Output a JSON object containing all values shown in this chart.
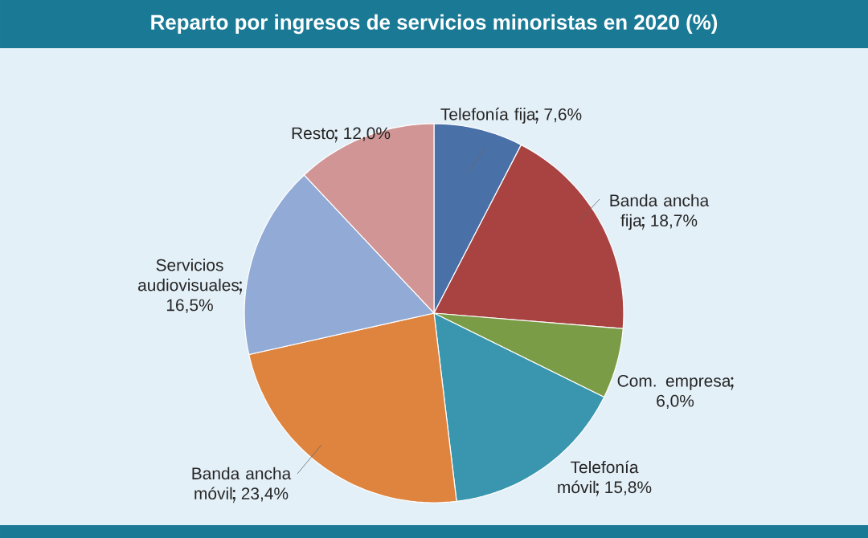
{
  "chart_data": {
    "type": "pie",
    "title": "Reparto por ingresos de servicios minoristas en 2020 (%)",
    "categories": [
      "Telefonía fija",
      "Banda ancha fija",
      "Com. empresa",
      "Telefonía móvil",
      "Banda ancha móvil",
      "Servicios audiovisuales",
      "Resto"
    ],
    "values": [
      7.6,
      18.7,
      6.0,
      15.8,
      23.4,
      16.5,
      12.0
    ],
    "value_labels": [
      "7,6%",
      "18,7%",
      "6,0%",
      "15,8%",
      "23,4%",
      "16,5%",
      "12,0%"
    ],
    "colors": [
      "#4a70a8",
      "#a84341",
      "#7b9c47",
      "#3a96ae",
      "#de843f",
      "#92aad6",
      "#d09594"
    ]
  }
}
